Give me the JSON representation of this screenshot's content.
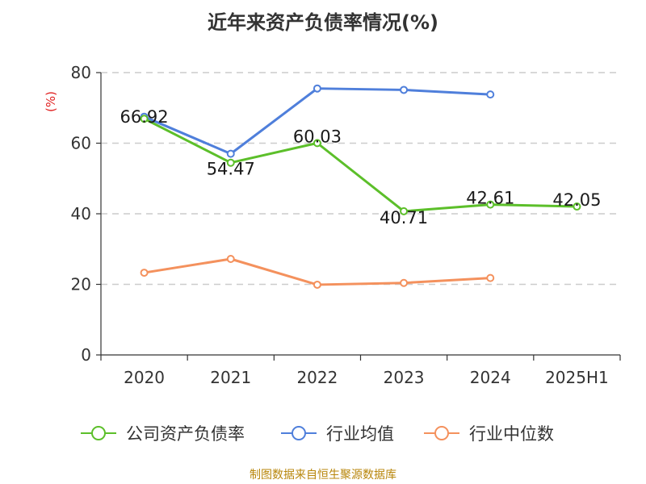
{
  "title": "近年来资产负债率情况(%)",
  "source": "制图数据来自恒生聚源数据库",
  "chart_data": {
    "type": "line",
    "title": "近年来资产负债率情况(%)",
    "ylabel": "(%)",
    "ylabel_color": "#e02020",
    "xlabel": "",
    "categories": [
      "2020",
      "2021",
      "2022",
      "2023",
      "2024",
      "2025H1"
    ],
    "ylim": [
      0,
      80
    ],
    "yticks": [
      "0",
      "20",
      "40",
      "60",
      "80"
    ],
    "grid": true,
    "legend_position": "bottom",
    "series": [
      {
        "name": "公司资产负债率",
        "color": "#5cbf2a",
        "values": [
          66.92,
          54.47,
          60.03,
          40.71,
          42.61,
          42.05
        ],
        "labels": [
          "66.92",
          "54.47",
          "60.03",
          "40.71",
          "42.61",
          "42.05"
        ]
      },
      {
        "name": "行业均值",
        "color": "#4f7fdb",
        "values": [
          67.5,
          57.0,
          75.5,
          75.1,
          73.8,
          null
        ]
      },
      {
        "name": "行业中位数",
        "color": "#f4915d",
        "values": [
          23.3,
          27.2,
          19.9,
          20.4,
          21.8,
          null
        ]
      }
    ]
  }
}
